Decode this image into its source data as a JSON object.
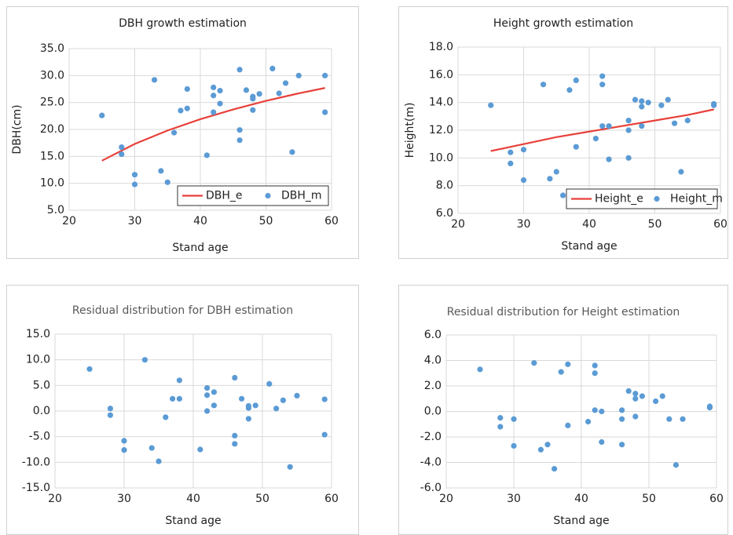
{
  "chart_data": [
    {
      "type": "line",
      "title": "DBH growth estimation",
      "x_label": "Stand age",
      "y_label": "DBH(cm)",
      "xlim": [
        20,
        60
      ],
      "xticks": [
        20,
        30,
        40,
        50,
        60
      ],
      "ylim": [
        5,
        35
      ],
      "yticks": [
        {
          "value": 5,
          "label": "5.0"
        },
        {
          "value": 10,
          "label": "10.0"
        },
        {
          "value": 15,
          "label": "15.0"
        },
        {
          "value": 20,
          "label": "20.0"
        },
        {
          "value": 25,
          "label": "25.0"
        },
        {
          "value": 30,
          "label": "30.0"
        },
        {
          "value": 35,
          "label": "35.0"
        }
      ],
      "grid": true,
      "legend": "lower right",
      "series": [
        {
          "name": "DBH_e",
          "mode": "line",
          "color": "#e8403a",
          "x": [
            25,
            30,
            35,
            40,
            45,
            50,
            55,
            59
          ],
          "values": [
            14.2,
            17.3,
            19.8,
            21.9,
            23.7,
            25.3,
            26.7,
            27.7
          ]
        },
        {
          "name": "DBH_m",
          "mode": "markers",
          "color": "#5b9bd5",
          "x": [
            25,
            28,
            28,
            30,
            30,
            33,
            34,
            35,
            36,
            37,
            38,
            38,
            41,
            42,
            42,
            42,
            43,
            43,
            46,
            46,
            46,
            47,
            48,
            48,
            48,
            49,
            51,
            52,
            53,
            54,
            55,
            59,
            59
          ],
          "values": [
            22.6,
            16.7,
            15.4,
            11.6,
            9.8,
            29.2,
            12.3,
            10.2,
            19.4,
            23.5,
            23.9,
            27.5,
            15.2,
            27.8,
            26.3,
            23.2,
            27.2,
            24.8,
            31.1,
            19.9,
            18.0,
            27.3,
            26.1,
            25.7,
            23.6,
            26.6,
            31.3,
            26.7,
            28.6,
            15.8,
            30.0,
            30.0,
            23.2
          ]
        }
      ]
    },
    {
      "type": "line",
      "title": "Height growth estimation",
      "x_label": "Stand age",
      "y_label": "Height(m)",
      "xlim": [
        20,
        60
      ],
      "xticks": [
        20,
        30,
        40,
        50,
        60
      ],
      "ylim": [
        6,
        18
      ],
      "yticks": [
        {
          "value": 6,
          "label": "6.0"
        },
        {
          "value": 8,
          "label": "8.0"
        },
        {
          "value": 10,
          "label": "10.0"
        },
        {
          "value": 12,
          "label": "12.0"
        },
        {
          "value": 14,
          "label": "14.0"
        },
        {
          "value": 16,
          "label": "16.0"
        },
        {
          "value": 18,
          "label": "18.0"
        }
      ],
      "grid": true,
      "legend": "lower right",
      "series": [
        {
          "name": "Height_e",
          "mode": "line",
          "color": "#e8403a",
          "x": [
            25,
            30,
            35,
            40,
            45,
            50,
            55,
            59
          ],
          "values": [
            10.5,
            11.0,
            11.5,
            11.9,
            12.3,
            12.7,
            13.1,
            13.5
          ]
        },
        {
          "name": "Height_m",
          "mode": "markers",
          "color": "#5b9bd5",
          "x": [
            25,
            28,
            28,
            30,
            30,
            33,
            34,
            35,
            36,
            37,
            38,
            38,
            41,
            42,
            42,
            42,
            43,
            43,
            46,
            46,
            46,
            47,
            48,
            48,
            48,
            49,
            51,
            52,
            53,
            54,
            55,
            59,
            59
          ],
          "values": [
            13.8,
            10.4,
            9.6,
            10.6,
            8.4,
            15.3,
            8.5,
            9.0,
            7.3,
            14.9,
            15.6,
            10.8,
            11.4,
            15.9,
            15.3,
            12.3,
            12.3,
            9.9,
            12.7,
            12.0,
            10.0,
            14.2,
            14.1,
            13.7,
            12.3,
            14.0,
            13.8,
            14.2,
            12.5,
            9.0,
            12.7,
            13.9,
            13.8
          ]
        }
      ]
    },
    {
      "type": "scatter",
      "title": "Residual distribution for DBH estimation",
      "x_label": "Stand age",
      "xlim": [
        20,
        60
      ],
      "xticks": [
        20,
        30,
        40,
        50,
        60
      ],
      "ylim": [
        -15,
        15
      ],
      "yticks": [
        {
          "value": -15,
          "label": "-15.0"
        },
        {
          "value": -10,
          "label": "-10.0"
        },
        {
          "value": -5,
          "label": "-5.0"
        },
        {
          "value": 0,
          "label": "0.0"
        },
        {
          "value": 5,
          "label": "5.0"
        },
        {
          "value": 10,
          "label": "10.0"
        },
        {
          "value": 15,
          "label": "15.0"
        }
      ],
      "grid": true,
      "series": [
        {
          "color": "#5b9bd5",
          "x": [
            25,
            28,
            28,
            30,
            30,
            33,
            34,
            35,
            36,
            37,
            38,
            38,
            41,
            42,
            42,
            42,
            43,
            43,
            46,
            46,
            46,
            47,
            48,
            48,
            48,
            49,
            51,
            52,
            53,
            54,
            55,
            59,
            59
          ],
          "values": [
            8.2,
            0.5,
            -0.8,
            -5.8,
            -7.6,
            10.0,
            -7.2,
            -9.8,
            -1.2,
            2.4,
            2.4,
            6.0,
            -7.5,
            4.5,
            3.1,
            0.0,
            3.7,
            1.1,
            6.5,
            -4.8,
            -6.4,
            2.4,
            1.0,
            0.6,
            -1.5,
            1.1,
            5.3,
            0.5,
            2.1,
            -10.9,
            3.0,
            2.3,
            -4.6
          ]
        }
      ]
    },
    {
      "type": "scatter",
      "title": "Residual distribution for Height estimation",
      "x_label": "Stand age",
      "xlim": [
        20,
        60
      ],
      "xticks": [
        20,
        30,
        40,
        50,
        60
      ],
      "ylim": [
        -6,
        6
      ],
      "yticks": [
        {
          "value": -6,
          "label": "-6.0"
        },
        {
          "value": -4,
          "label": "-4.0"
        },
        {
          "value": -2,
          "label": "-2.0"
        },
        {
          "value": 0,
          "label": "0.0"
        },
        {
          "value": 2,
          "label": "2.0"
        },
        {
          "value": 4,
          "label": "4.0"
        },
        {
          "value": 6,
          "label": "6.0"
        }
      ],
      "grid": true,
      "series": [
        {
          "color": "#5b9bd5",
          "x": [
            25,
            28,
            28,
            30,
            30,
            33,
            34,
            35,
            36,
            37,
            38,
            38,
            41,
            42,
            42,
            42,
            43,
            43,
            46,
            46,
            46,
            47,
            48,
            48,
            48,
            49,
            51,
            52,
            53,
            54,
            55,
            59,
            59
          ],
          "values": [
            3.3,
            -0.5,
            -1.2,
            -0.6,
            -2.7,
            3.8,
            -3.0,
            -2.6,
            -4.5,
            3.1,
            3.7,
            -1.1,
            -0.8,
            3.6,
            3.0,
            0.1,
            0.0,
            -2.4,
            0.1,
            -0.6,
            -2.6,
            1.6,
            1.4,
            1.0,
            -0.4,
            1.2,
            0.8,
            1.2,
            -0.6,
            -4.2,
            -0.6,
            0.4,
            0.3
          ]
        }
      ]
    }
  ]
}
